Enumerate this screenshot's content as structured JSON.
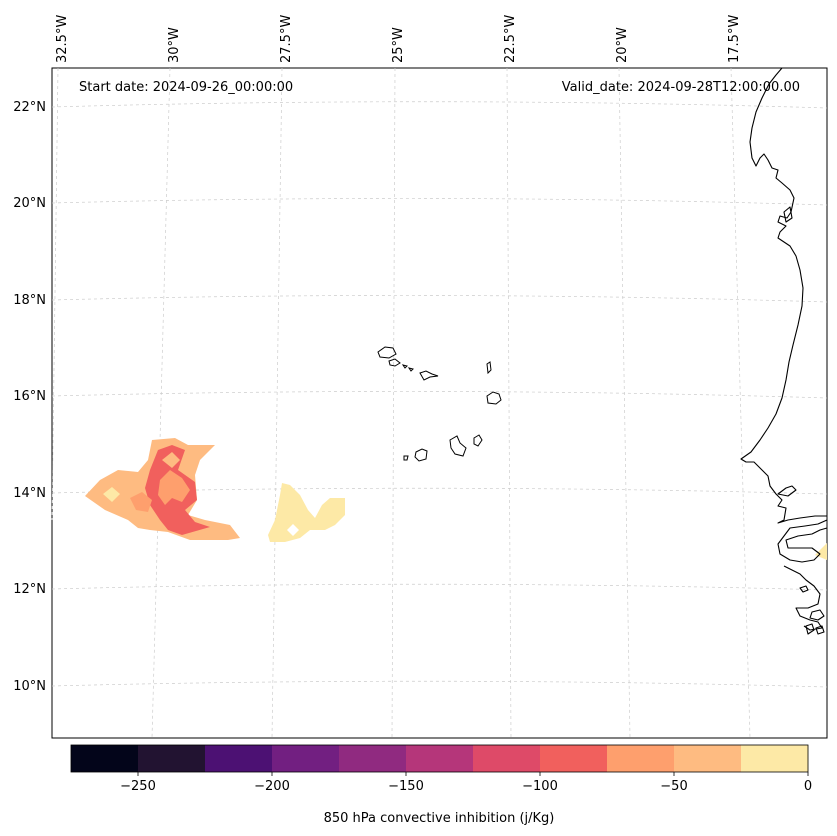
{
  "map": {
    "start_date": "Start date: 2024-09-26_00:00:00",
    "valid_date": "Valid_date: 2024-09-28T12:00:00.00",
    "lon_labels": [
      "32.5°W",
      "30°W",
      "27.5°W",
      "25°W",
      "22.5°W",
      "20°W",
      "17.5°W"
    ],
    "lat_labels": [
      "22°N",
      "20°N",
      "18°N",
      "16°N",
      "14°N",
      "12°N",
      "10°N"
    ],
    "features": [
      "Cape Verde islands",
      "West African coastline"
    ]
  },
  "colorbar": {
    "label": "850 hPa convective inhibition (j/Kg)",
    "ticks": [
      "−250",
      "−200",
      "−150",
      "−100",
      "−50",
      "0"
    ],
    "tick_values": [
      -250,
      -200,
      -150,
      -100,
      -50,
      0
    ],
    "range": [
      -275,
      0
    ],
    "levels": [
      -275,
      -250,
      -225,
      -200,
      -175,
      -150,
      -125,
      -100,
      -75,
      -50,
      -25,
      0
    ],
    "colors": [
      "#03051a",
      "#221331",
      "#4c1173",
      "#721f81",
      "#902a80",
      "#b5367a",
      "#de4a68",
      "#f1605d",
      "#fe9f6d",
      "#febb81",
      "#fde9a6"
    ]
  },
  "colors": {
    "coastline": "#000000",
    "grid": "#cccccc",
    "cin_low": "#fde9a6",
    "cin_mid": "#febb81",
    "cin_high": "#f1605d"
  }
}
